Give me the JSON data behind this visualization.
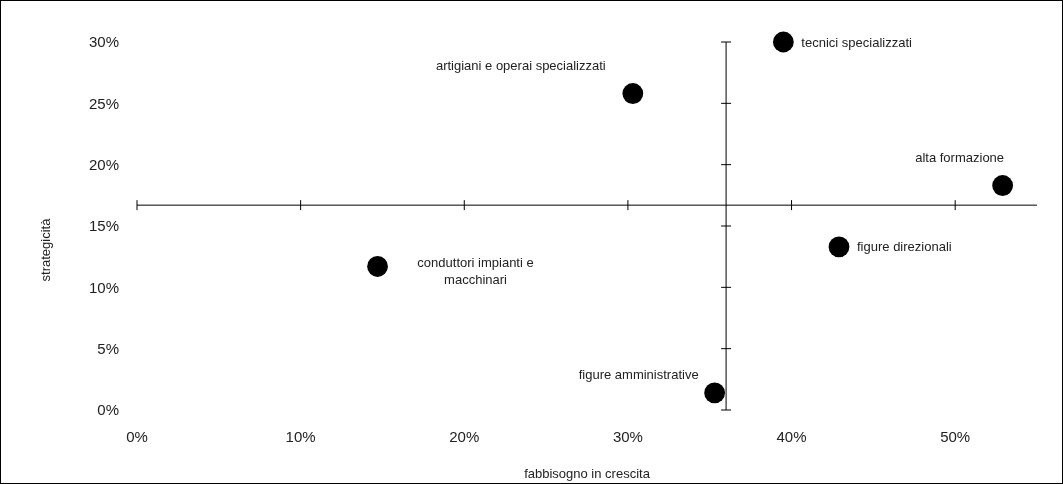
{
  "chart_data": {
    "type": "scatter",
    "xlabel": "fabbisogno in crescita",
    "ylabel": "strategicità",
    "xlim": [
      0,
      55
    ],
    "ylim": [
      0,
      30
    ],
    "xticks": [
      {
        "value": 0,
        "label": "0%"
      },
      {
        "value": 10,
        "label": "10%"
      },
      {
        "value": 20,
        "label": "20%"
      },
      {
        "value": 30,
        "label": "30%"
      },
      {
        "value": 40,
        "label": "40%"
      },
      {
        "value": 50,
        "label": "50%"
      }
    ],
    "yticks": [
      {
        "value": 0,
        "label": "0%"
      },
      {
        "value": 5,
        "label": "5%"
      },
      {
        "value": 10,
        "label": "10%"
      },
      {
        "value": 15,
        "label": "15%"
      },
      {
        "value": 20,
        "label": "20%"
      },
      {
        "value": 25,
        "label": "25%"
      },
      {
        "value": 30,
        "label": "30%"
      }
    ],
    "ref_lines": [
      {
        "axis": "x",
        "value": 36
      },
      {
        "axis": "y",
        "value": 16.7
      }
    ],
    "marker": "circle",
    "grid": false,
    "series": [
      {
        "name": "tecnici specializzati",
        "color": "#000000",
        "x": [
          39.5
        ],
        "values": [
          30.0
        ]
      },
      {
        "name": "artigiani e operai specializzati",
        "color": "#000000",
        "x": [
          30.3
        ],
        "values": [
          25.8
        ]
      },
      {
        "name": "alta formazione",
        "color": "#000000",
        "x": [
          52.9
        ],
        "values": [
          18.3
        ]
      },
      {
        "name": "figure direzionali",
        "color": "#000000",
        "x": [
          42.9
        ],
        "values": [
          13.3
        ]
      },
      {
        "name": "conduttori impianti e macchinari",
        "color": "#000000",
        "x": [
          14.7
        ],
        "values": [
          11.7
        ]
      },
      {
        "name": "figure amministrative",
        "color": "#000000",
        "x": [
          35.3
        ],
        "values": [
          1.4
        ]
      }
    ]
  }
}
